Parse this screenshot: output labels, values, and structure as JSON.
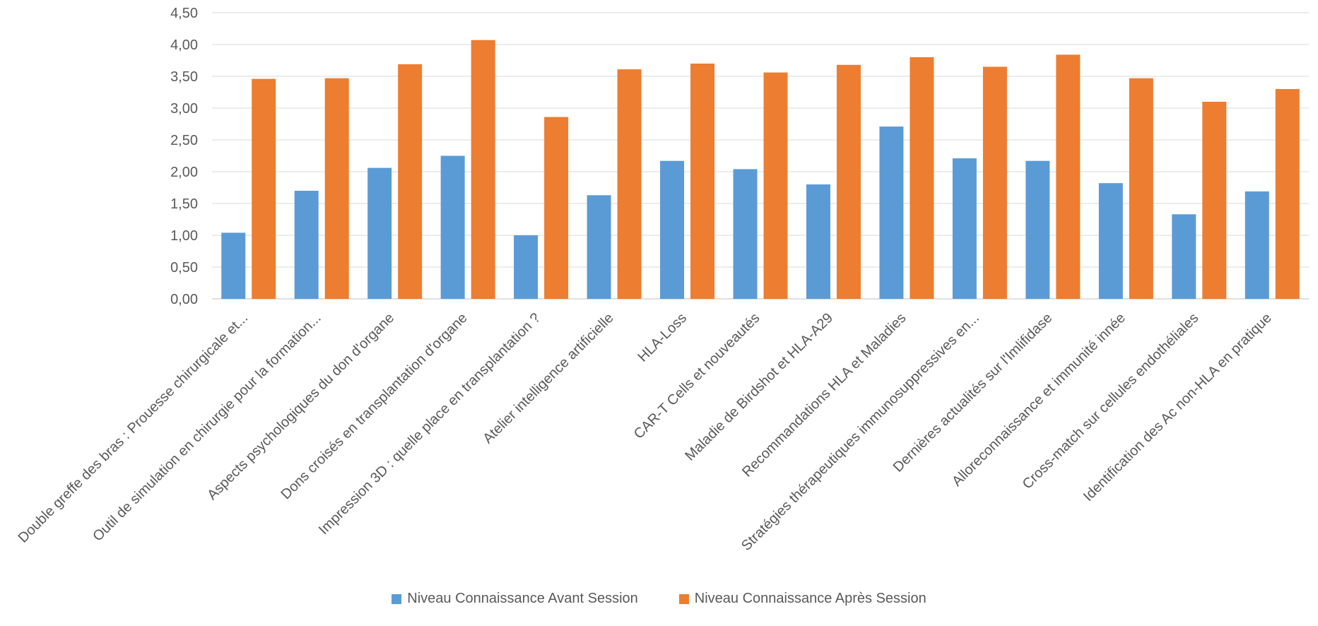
{
  "chart_data": {
    "type": "bar",
    "title": "",
    "xlabel": "",
    "ylabel": "",
    "ylim": [
      0,
      4.5
    ],
    "yticks": [
      "0,00",
      "0,50",
      "1,00",
      "1,50",
      "2,00",
      "2,50",
      "3,00",
      "3,50",
      "4,00",
      "4,50"
    ],
    "grid": true,
    "legend_position": "bottom",
    "categories": [
      "Double greffe des bras : Prouesse chirurgicale et...",
      "Outil de simulation en chirurgie pour la formation...",
      "Aspects psychologiques du don d'organe",
      "Dons croisés en transplantation d'organe",
      "Impression 3D : quelle place en transplantation ?",
      "Atelier intelligence artificielle",
      "HLA-Loss",
      "CAR-T Cells et nouveautés",
      "Maladie de Birdshot et HLA-A29",
      "Recommandations HLA et Maladies",
      "Stratégies thérapeutiques immunosuppressives en...",
      "Dernières actualités sur l'Imlifidase",
      "Alloreconnaissance et immunité innée",
      "Cross-match sur cellules endothéliales",
      "Identification des Ac non-HLA en pratique"
    ],
    "series": [
      {
        "name": "Niveau Connaissance Avant Session",
        "color": "#5B9BD5",
        "values": [
          1.04,
          1.7,
          2.06,
          2.25,
          1.0,
          1.63,
          2.17,
          2.04,
          1.8,
          2.71,
          2.21,
          2.17,
          1.82,
          1.33,
          1.69
        ]
      },
      {
        "name": "Niveau Connaissance Après Session",
        "color": "#ED7D31",
        "values": [
          3.46,
          3.47,
          3.69,
          4.07,
          2.86,
          3.61,
          3.7,
          3.56,
          3.68,
          3.8,
          3.65,
          3.84,
          3.47,
          3.1,
          3.3
        ]
      }
    ]
  }
}
